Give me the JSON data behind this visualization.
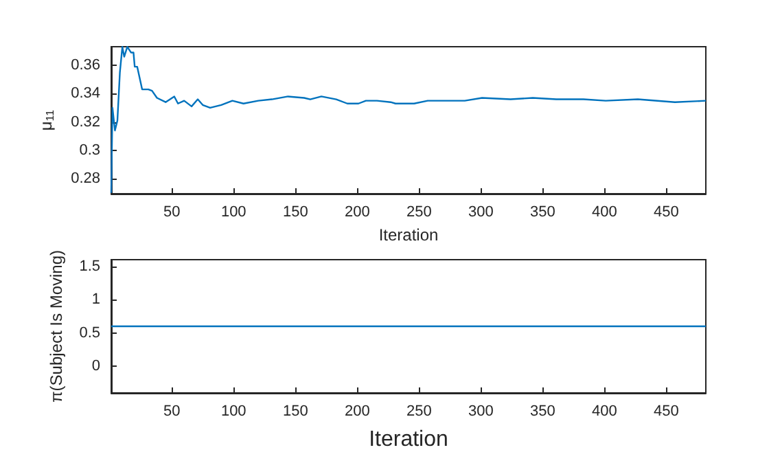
{
  "chart_data": [
    {
      "type": "line",
      "xlabel": "Iteration",
      "ylabel": "μ$_{11}$",
      "xlim": [
        1,
        482
      ],
      "xticks": [
        50,
        100,
        150,
        200,
        250,
        300,
        350,
        400,
        450
      ],
      "ylim": [
        0.2694,
        0.3731
      ],
      "yticks": [
        0.28,
        0.3,
        0.32,
        0.34,
        0.36
      ],
      "grid": false,
      "marker": "none",
      "series": [
        {
          "color": "#0072bd",
          "x": [
            1,
            2,
            4,
            6,
            8,
            10,
            11.5,
            14,
            17,
            19,
            20,
            22,
            24,
            26,
            31,
            34,
            38,
            45,
            52,
            55,
            60,
            66,
            71,
            75,
            81,
            90,
            99,
            108,
            120,
            131,
            144,
            157,
            162,
            171,
            183,
            192,
            201,
            207,
            216,
            227,
            231,
            246,
            257,
            287,
            301,
            324,
            342,
            361,
            383,
            401,
            427,
            457,
            482
          ],
          "values": [
            0.27,
            0.33,
            0.314,
            0.321,
            0.355,
            0.373,
            0.366,
            0.373,
            0.369,
            0.369,
            0.359,
            0.359,
            0.351,
            0.343,
            0.343,
            0.342,
            0.337,
            0.334,
            0.338,
            0.333,
            0.335,
            0.331,
            0.336,
            0.332,
            0.33,
            0.332,
            0.335,
            0.333,
            0.335,
            0.336,
            0.338,
            0.337,
            0.336,
            0.338,
            0.336,
            0.333,
            0.333,
            0.335,
            0.335,
            0.334,
            0.333,
            0.333,
            0.335,
            0.335,
            0.337,
            0.336,
            0.337,
            0.336,
            0.336,
            0.335,
            0.336,
            0.334,
            0.335
          ]
        }
      ]
    },
    {
      "type": "line",
      "xlabel": "Iteration",
      "ylabel": "π(Subject Is Moving)",
      "xlim": [
        1,
        482
      ],
      "xticks": [
        50,
        100,
        150,
        200,
        250,
        300,
        350,
        400,
        450
      ],
      "ylim": [
        -0.4,
        1.6
      ],
      "yticks": [
        0,
        0.5,
        1,
        1.5
      ],
      "grid": false,
      "marker": "none",
      "series": [
        {
          "color": "#0072bd",
          "x": [
            1,
            482
          ],
          "values": [
            0.6,
            0.6
          ]
        }
      ]
    }
  ]
}
